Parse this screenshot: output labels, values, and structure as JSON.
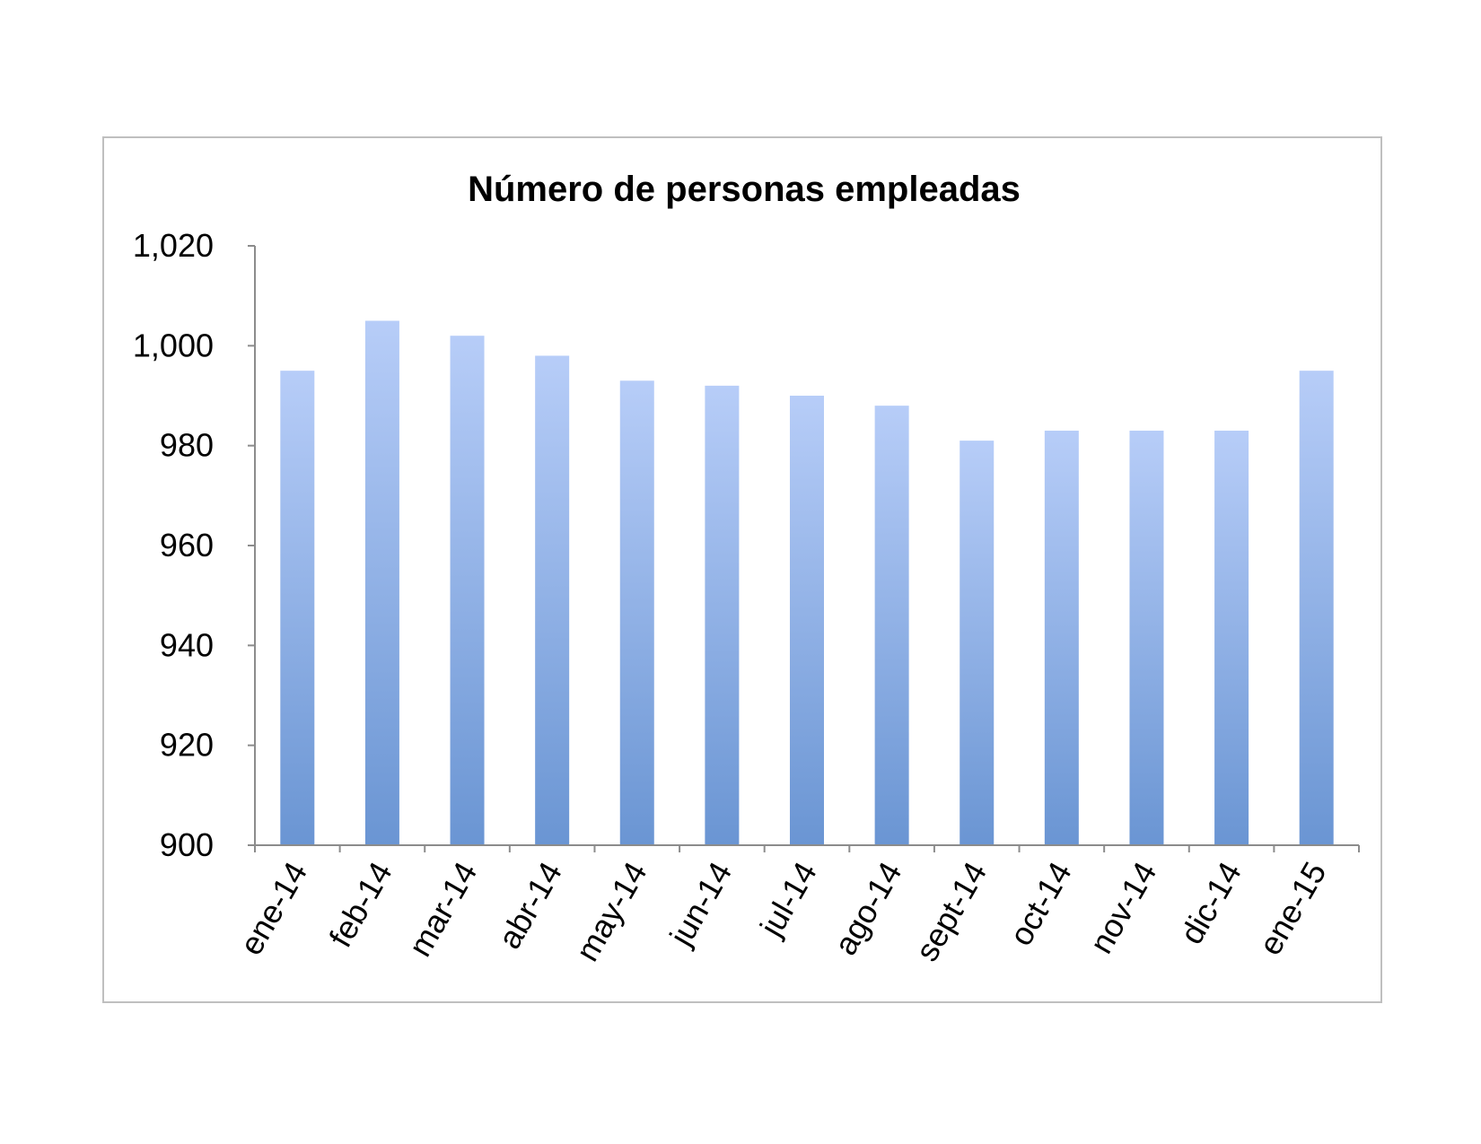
{
  "chart_data": {
    "type": "bar",
    "title": "Número de personas empleadas",
    "xlabel": "",
    "ylabel": "",
    "categories": [
      "ene-14",
      "feb-14",
      "mar-14",
      "abr-14",
      "may-14",
      "jun-14",
      "jul-14",
      "ago-14",
      "sept-14",
      "oct-14",
      "nov-14",
      "dic-14",
      "ene-15"
    ],
    "values": [
      995,
      1005,
      1002,
      998,
      993,
      992,
      990,
      988,
      981,
      983,
      983,
      983,
      995
    ],
    "ylim": [
      900,
      1020
    ],
    "yticks": [
      900,
      920,
      940,
      960,
      980,
      1000,
      1020
    ],
    "ytick_labels": [
      "900",
      "920",
      "940",
      "960",
      "980",
      "1,000",
      "1,020"
    ],
    "grid": false,
    "legend": "none",
    "bar_color_top": "#b7cdf8",
    "bar_color_bottom": "#6a95d3",
    "axis_color": "#8c8c8c"
  }
}
